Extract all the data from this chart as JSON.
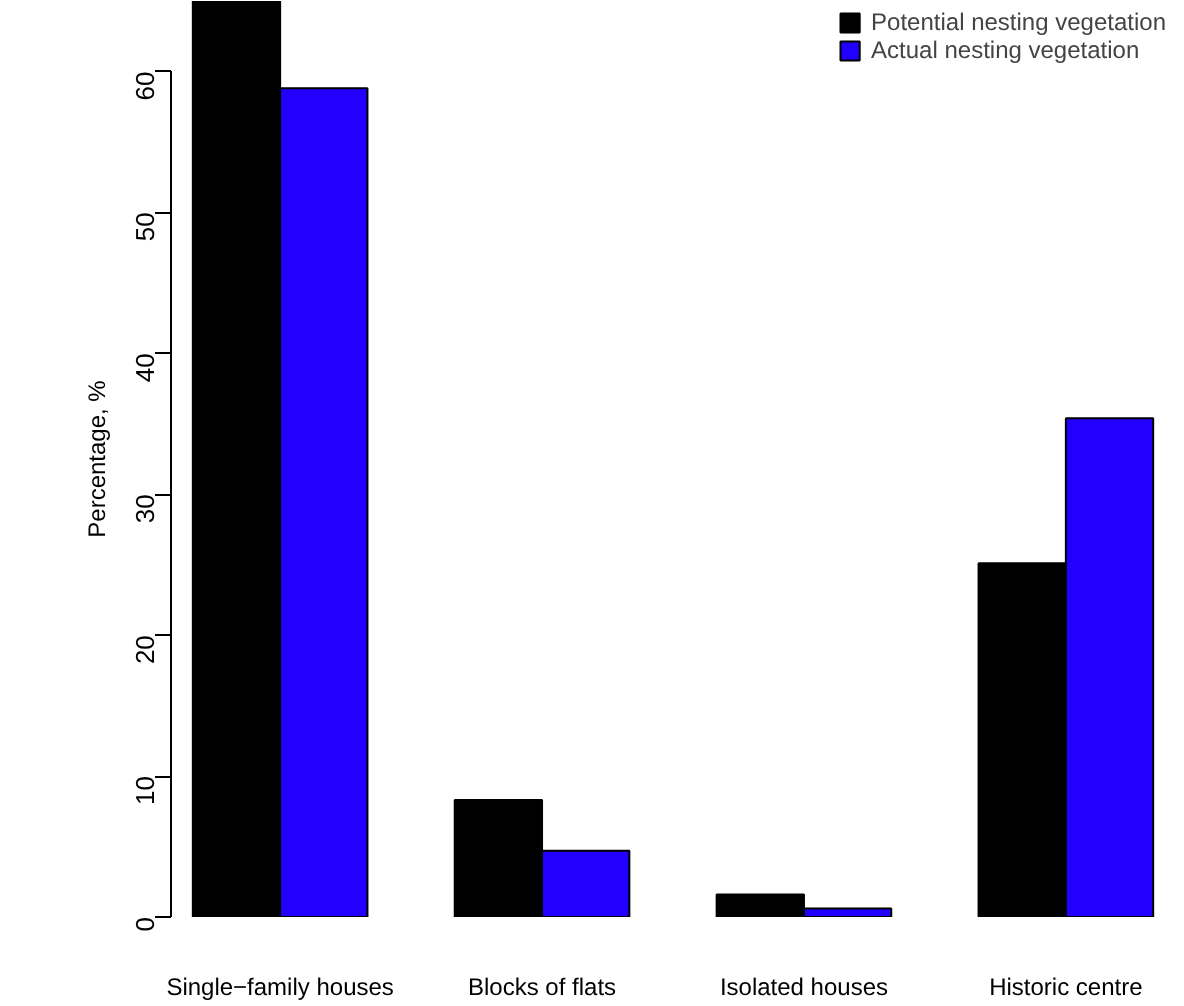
{
  "chart_data": {
    "type": "bar",
    "ylabel": "Percentage, %",
    "categories": [
      "Single−family houses",
      "Blocks of flats",
      "Isolated houses",
      "Historic centre"
    ],
    "series": [
      {
        "name": "Potential nesting vegetation",
        "color": "#000000",
        "values": [
          65,
          8.3,
          1.6,
          25.1
        ]
      },
      {
        "name": "Actual nesting vegetation",
        "color": "#2200ff",
        "values": [
          58.8,
          4.7,
          0.6,
          35.4
        ]
      }
    ],
    "ylim": [
      0,
      65
    ],
    "yticks": [
      0,
      10,
      20,
      30,
      40,
      50,
      60
    ],
    "grid": false,
    "legend": "top right"
  }
}
